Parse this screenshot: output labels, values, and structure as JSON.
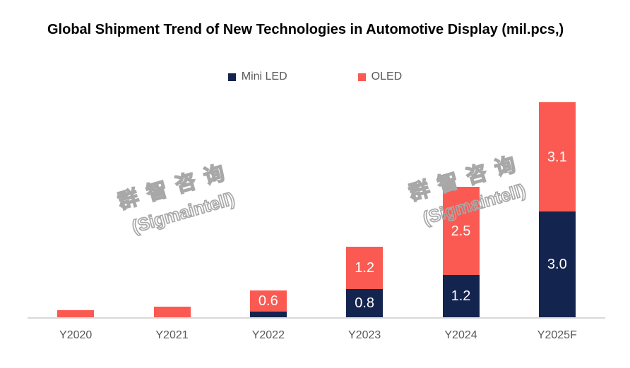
{
  "watermark": {
    "line1": "群智咨询",
    "line2": "(Sigmaintell)"
  },
  "chart_data": {
    "type": "bar",
    "stacked": true,
    "title": "Global Shipment Trend of New Technologies in Automotive Display (mil.pcs,)",
    "categories": [
      "Y2020",
      "Y2021",
      "Y2022",
      "Y2023",
      "Y2024",
      "Y2025F"
    ],
    "series": [
      {
        "name": "Mini LED",
        "color": "#13244E",
        "values": [
          0,
          0,
          0.15,
          0.8,
          1.2,
          3.0
        ],
        "labels": [
          "",
          "",
          "",
          "0.8",
          "1.2",
          "3.0"
        ]
      },
      {
        "name": "OLED",
        "color": "#FA5A52",
        "values": [
          0.2,
          0.3,
          0.6,
          1.2,
          2.5,
          3.1
        ],
        "labels": [
          "",
          "",
          "0.6",
          "1.2",
          "2.5",
          "3.1"
        ]
      }
    ],
    "xlabel": "",
    "ylabel": "",
    "ylim": [
      0,
      6.5
    ],
    "grid": false,
    "y_axis_visible": false,
    "legend_position": "top",
    "data_label_color": "#FFFFFF",
    "axis_line_color": "#D9D9D9",
    "tick_label_color": "#595959",
    "title_color": "#000000"
  }
}
